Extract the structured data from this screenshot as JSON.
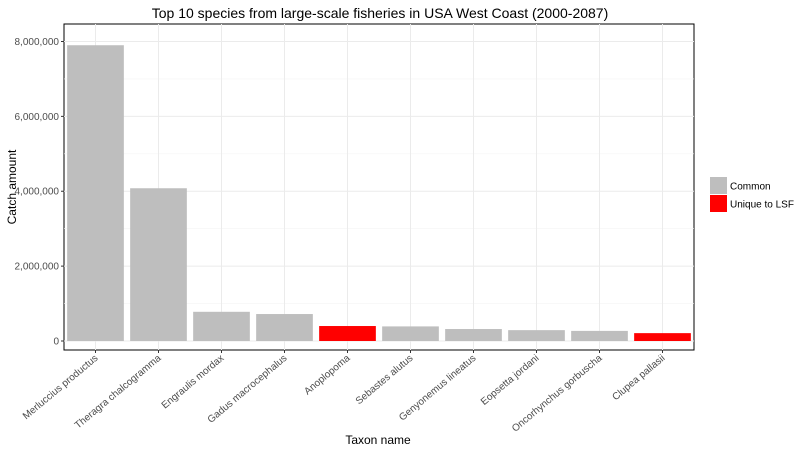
{
  "chart_data": {
    "type": "bar",
    "title": "Top 10 species from large-scale fisheries in USA West Coast (2000-2087)",
    "xlabel": "Taxon name",
    "ylabel": "Catch amount",
    "ylim": [
      0,
      8200000
    ],
    "yticks": [
      0,
      2000000,
      4000000,
      6000000,
      8000000
    ],
    "ytick_labels": [
      "0",
      "2,000,000",
      "4,000,000",
      "6,000,000",
      "8,000,000"
    ],
    "grid": true,
    "legend_position": "right",
    "categories": [
      "Merluccius productus",
      "Theragra chalcogramma",
      "Engraulis mordax",
      "Gadus macrocephalus",
      "Anoplopoma",
      "Sebastes alutus",
      "Genyonemus lineatus",
      "Eopsetta jordani",
      "Oncorhynchus gorbuscha",
      "Clupea pallasii"
    ],
    "values": [
      7900000,
      4080000,
      780000,
      720000,
      400000,
      390000,
      320000,
      290000,
      270000,
      210000
    ],
    "groups": [
      "Common",
      "Common",
      "Common",
      "Common",
      "Unique to LSF",
      "Common",
      "Common",
      "Common",
      "Common",
      "Unique to LSF"
    ],
    "legend": [
      {
        "name": "Common",
        "color": "#bebebe"
      },
      {
        "name": "Unique to LSF",
        "color": "#ff0000"
      }
    ]
  }
}
